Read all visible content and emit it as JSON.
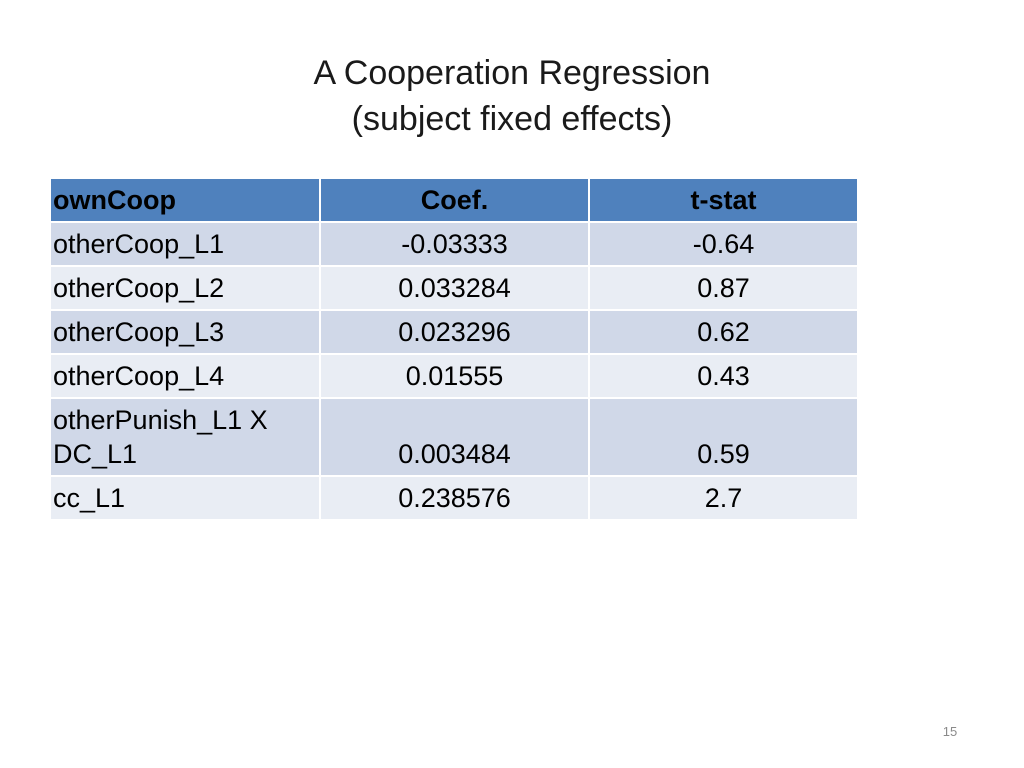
{
  "title": {
    "line1": "A Cooperation Regression",
    "line2": "(subject fixed effects)"
  },
  "table": {
    "header": [
      "ownCoop",
      "Coef.",
      "t-stat"
    ],
    "rows": [
      {
        "var": "otherCoop_L1",
        "coef": "-0.03333",
        "tstat": "-0.64"
      },
      {
        "var": "otherCoop_L2",
        "coef": "0.033284",
        "tstat": "0.87"
      },
      {
        "var": "otherCoop_L3",
        "coef": "0.023296",
        "tstat": "0.62"
      },
      {
        "var": "otherCoop_L4",
        "coef": "0.01555",
        "tstat": "0.43"
      },
      {
        "var_line1": "otherPunish_L1 X",
        "var_line2": "DC_L1",
        "coef": "0.003484",
        "tstat": "0.59"
      },
      {
        "var": "cc_L1",
        "coef": "0.238576",
        "tstat": "2.7"
      }
    ]
  },
  "page_number": "15",
  "colors": {
    "header_bg": "#4f81bd",
    "row_odd_bg": "#d0d8e8",
    "row_even_bg": "#e9edf4"
  }
}
